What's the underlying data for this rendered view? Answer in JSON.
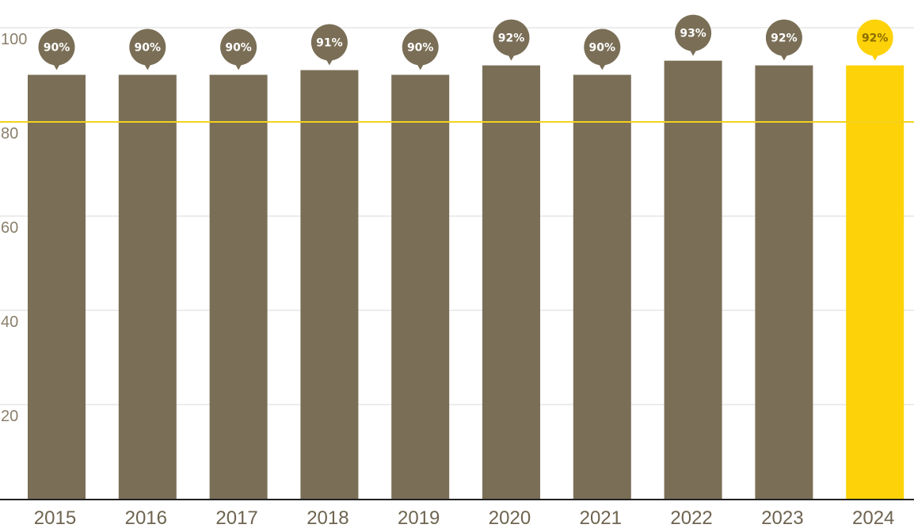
{
  "chart_data": {
    "type": "bar",
    "categories": [
      "2015",
      "2016",
      "2017",
      "2018",
      "2019",
      "2020",
      "2021",
      "2022",
      "2023",
      "2024"
    ],
    "values": [
      90,
      90,
      90,
      91,
      90,
      92,
      90,
      93,
      92,
      92
    ],
    "data_labels": [
      "90%",
      "90%",
      "90%",
      "91%",
      "90%",
      "92%",
      "90%",
      "93%",
      "92%",
      "92%"
    ],
    "highlight_category": "2024",
    "yticks": [
      100,
      80,
      60,
      40,
      20
    ],
    "ylim": [
      0,
      100
    ],
    "reference_line": 80,
    "grid": true,
    "colors": {
      "bar": "#7a6e56",
      "highlight": "#fdd208",
      "reference_line": "#f2d21e",
      "grid": "#d9d9d9",
      "axis": "#222222"
    }
  }
}
